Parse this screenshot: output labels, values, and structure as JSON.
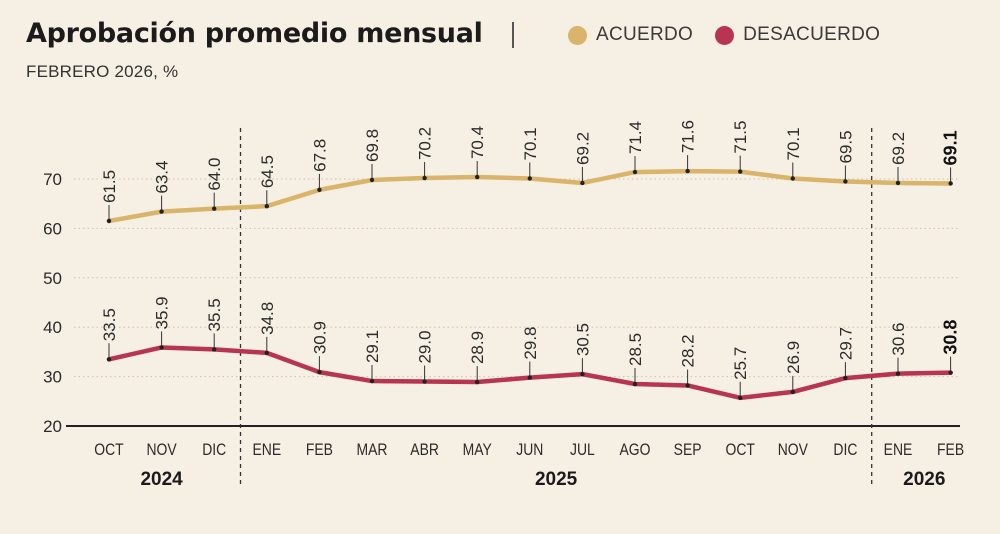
{
  "header": {
    "title": "Aprobación promedio mensual",
    "subtitle": "FEBRERO 2026, %",
    "legend": [
      {
        "label": "ACUERDO",
        "color": "#d9b46a"
      },
      {
        "label": "DESACUERDO",
        "color": "#b73550"
      }
    ]
  },
  "chart_data": {
    "type": "line",
    "title": "Aprobación promedio mensual",
    "subtitle": "FEBRERO 2026, %",
    "categories": [
      "OCT",
      "NOV",
      "DIC",
      "ENE",
      "FEB",
      "MAR",
      "ABR",
      "MAY",
      "JUN",
      "JUL",
      "AGO",
      "SEP",
      "OCT",
      "NOV",
      "DIC",
      "ENE",
      "FEB"
    ],
    "year_groups": [
      {
        "label": "2024",
        "start": 0,
        "end": 2
      },
      {
        "label": "2025",
        "start": 3,
        "end": 14
      },
      {
        "label": "2026",
        "start": 15,
        "end": 16
      }
    ],
    "series": [
      {
        "name": "ACUERDO",
        "color": "#d9b46a",
        "values": [
          61.5,
          63.4,
          64.0,
          64.5,
          67.8,
          69.8,
          70.2,
          70.4,
          70.1,
          69.2,
          71.4,
          71.6,
          71.5,
          70.1,
          69.5,
          69.2,
          69.1
        ]
      },
      {
        "name": "DESACUERDO",
        "color": "#b73550",
        "values": [
          33.5,
          35.9,
          35.5,
          34.8,
          30.9,
          29.1,
          29.0,
          28.9,
          29.8,
          30.5,
          28.5,
          28.2,
          25.7,
          26.9,
          29.7,
          30.6,
          30.8
        ]
      }
    ],
    "yticks": [
      20,
      30,
      40,
      50,
      60,
      70
    ],
    "ylim": [
      20,
      72
    ],
    "grid": true,
    "highlight_last": true
  }
}
